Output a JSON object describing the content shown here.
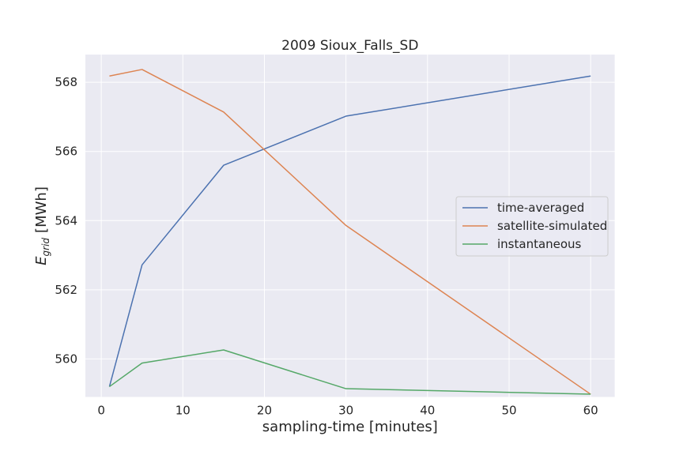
{
  "chart_data": {
    "type": "line",
    "title": "2009 Sioux_Falls_SD",
    "xlabel": "sampling-time [minutes]",
    "ylabel_main": "E",
    "ylabel_sub": "grid",
    "ylabel_unit": "[MWh]",
    "x": [
      1,
      5,
      15,
      30,
      60
    ],
    "xlim": [
      -1.95,
      62.95
    ],
    "ylim": [
      558.9,
      568.8
    ],
    "xticks": [
      0,
      10,
      20,
      30,
      40,
      50,
      60
    ],
    "yticks": [
      560,
      562,
      564,
      566,
      568
    ],
    "grid": true,
    "legend_position": "center-right",
    "series": [
      {
        "name": "time-averaged",
        "color": "#4c72b0",
        "values": [
          559.2,
          562.72,
          565.6,
          567.02,
          568.18
        ]
      },
      {
        "name": "satellite-simulated",
        "color": "#dd8452",
        "values": [
          568.18,
          568.37,
          567.14,
          563.86,
          558.98
        ]
      },
      {
        "name": "instantaneous",
        "color": "#55a868",
        "values": [
          559.2,
          559.88,
          560.26,
          559.14,
          558.98
        ]
      }
    ]
  },
  "colors": {
    "plot_background": "#eaeaf2",
    "grid": "#ffffff"
  }
}
